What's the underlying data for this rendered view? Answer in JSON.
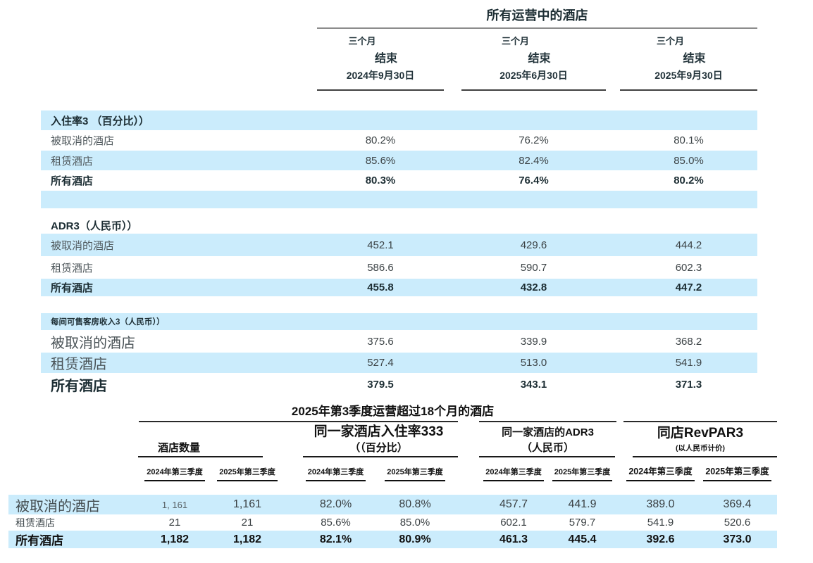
{
  "top_table": {
    "title": "所有运营中的酒店",
    "columns": [
      {
        "line1": "三个月",
        "line2": "结束",
        "date": "2024年9月30日"
      },
      {
        "line1": "三个月",
        "line2": "结束",
        "date": "2025年6月30日"
      },
      {
        "line1": "三个月",
        "line2": "结束",
        "date": "2025年9月30日"
      }
    ],
    "sections": [
      {
        "header": "入住率3 （百分比））",
        "rows": [
          {
            "label": "被取消的酒店",
            "v1": "80.2%",
            "v2": "76.2%",
            "v3": "80.1%"
          },
          {
            "label": "租赁酒店",
            "v1": "85.6%",
            "v2": "82.4%",
            "v3": "85.0%"
          },
          {
            "label": "所有酒店",
            "v1": "80.3%",
            "v2": "76.4%",
            "v3": "80.2%"
          }
        ]
      },
      {
        "header": "ADR3（人民币））",
        "rows": [
          {
            "label": "被取消的酒店",
            "v1": "452.1",
            "v2": "429.6",
            "v3": "444.2"
          },
          {
            "label": "租赁酒店",
            "v1": "586.6",
            "v2": "590.7",
            "v3": "602.3"
          },
          {
            "label": "所有酒店",
            "v1": "455.8",
            "v2": "432.8",
            "v3": "447.2"
          }
        ]
      },
      {
        "header": "每间可售客房收入3（人民币））",
        "rows": [
          {
            "label": "被取消的酒店",
            "v1": "375.6",
            "v2": "339.9",
            "v3": "368.2"
          },
          {
            "label": "租赁酒店",
            "v1": "527.4",
            "v2": "513.0",
            "v3": "541.9"
          },
          {
            "label": "所有酒店",
            "v1": "379.5",
            "v2": "343.1",
            "v3": "371.3"
          }
        ]
      }
    ]
  },
  "bottom_table": {
    "title": "2025年第3季度运营超过18个月的酒店",
    "groups": [
      {
        "line1": "",
        "line2": "酒店数量"
      },
      {
        "line1": "同一家酒店入住率333",
        "line2": "（（百分比）"
      },
      {
        "line1": "同一家酒店的ADR3",
        "line2": "（人民币）"
      },
      {
        "line1": "同店RevPAR3",
        "line2": "(以人民币计价)"
      }
    ],
    "period_2024": "2024年第三季度",
    "period_2025": "2025年第三季度",
    "rows": [
      {
        "label": "被取消的酒店",
        "c1": "1, 161",
        "c2": "1,161",
        "c3": "82.0%",
        "c4": "80.8%",
        "c5": "457.7",
        "c6": "441.9",
        "c7": "389.0",
        "c8": "369.4"
      },
      {
        "label": "租赁酒店",
        "c1": "21",
        "c2": "21",
        "c3": "85.6%",
        "c4": "85.0%",
        "c5": "602.1",
        "c6": "579.7",
        "c7": "541.9",
        "c8": "520.6"
      },
      {
        "label": "所有酒店",
        "c1": "1,182",
        "c2": "1,182",
        "c3": "82.1%",
        "c4": "80.9%",
        "c5": "461.3",
        "c6": "445.4",
        "c7": "392.6",
        "c8": "373.0"
      }
    ]
  },
  "colors": {
    "stripe_blue": "#cbecfc",
    "header_text": "#22333a",
    "title_rule_gray": "#8c8c8c",
    "bottom_rule_black": "#1a1a1a"
  }
}
